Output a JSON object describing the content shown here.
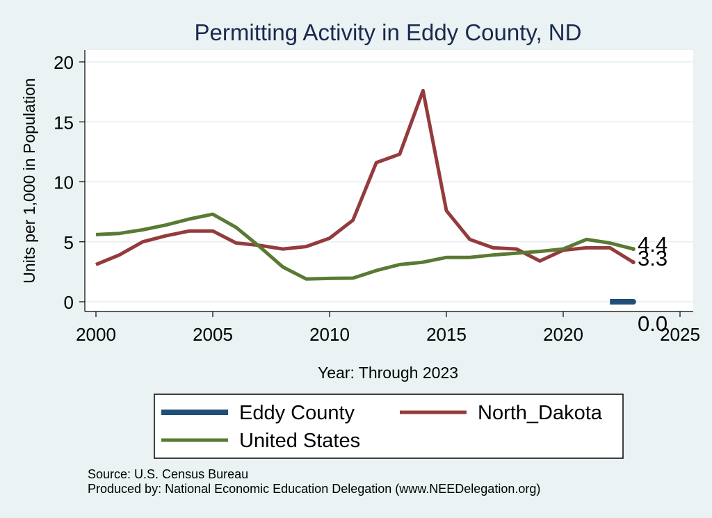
{
  "chart_data": {
    "type": "line",
    "title": "Permitting Activity in Eddy County, ND",
    "xlabel": "Year: Through 2023",
    "ylabel": "Units per 1,000 in Population",
    "xlim": [
      2000,
      2025
    ],
    "ylim": [
      0,
      20
    ],
    "x_ticks": [
      2000,
      2005,
      2010,
      2015,
      2020,
      2025
    ],
    "y_ticks": [
      0,
      5,
      10,
      15,
      20
    ],
    "grid": true,
    "legend_position": "bottom",
    "series": [
      {
        "name": "Eddy County",
        "color": "#1f4e79",
        "x": [
          2022,
          2023
        ],
        "values": [
          0.0,
          0.0
        ],
        "end_label": "0.0"
      },
      {
        "name": "North_Dakota",
        "color": "#943b3d",
        "x": [
          2000,
          2001,
          2002,
          2003,
          2004,
          2005,
          2006,
          2007,
          2008,
          2009,
          2010,
          2011,
          2012,
          2013,
          2014,
          2015,
          2016,
          2017,
          2018,
          2019,
          2020,
          2021,
          2022,
          2023
        ],
        "values": [
          3.1,
          3.9,
          5.0,
          5.5,
          5.9,
          5.9,
          4.9,
          4.7,
          4.4,
          4.6,
          5.3,
          6.8,
          11.6,
          12.3,
          17.6,
          7.6,
          5.2,
          4.5,
          4.4,
          3.4,
          4.3,
          4.5,
          4.5,
          3.3
        ],
        "end_label": "3.3"
      },
      {
        "name": "United States",
        "color": "#5a7a34",
        "x": [
          2000,
          2001,
          2002,
          2003,
          2004,
          2005,
          2006,
          2007,
          2008,
          2009,
          2010,
          2011,
          2012,
          2013,
          2014,
          2015,
          2016,
          2017,
          2018,
          2019,
          2020,
          2021,
          2022,
          2023
        ],
        "values": [
          5.6,
          5.7,
          6.0,
          6.4,
          6.9,
          7.3,
          6.2,
          4.6,
          2.9,
          1.9,
          1.95,
          1.97,
          2.6,
          3.1,
          3.3,
          3.7,
          3.7,
          3.9,
          4.05,
          4.2,
          4.4,
          5.2,
          4.9,
          4.4
        ],
        "end_label": "4.4"
      }
    ]
  },
  "source_lines": [
    "Source: U.S. Census Bureau",
    "Produced by: National Economic Education Delegation (www.NEEDelegation.org)"
  ]
}
